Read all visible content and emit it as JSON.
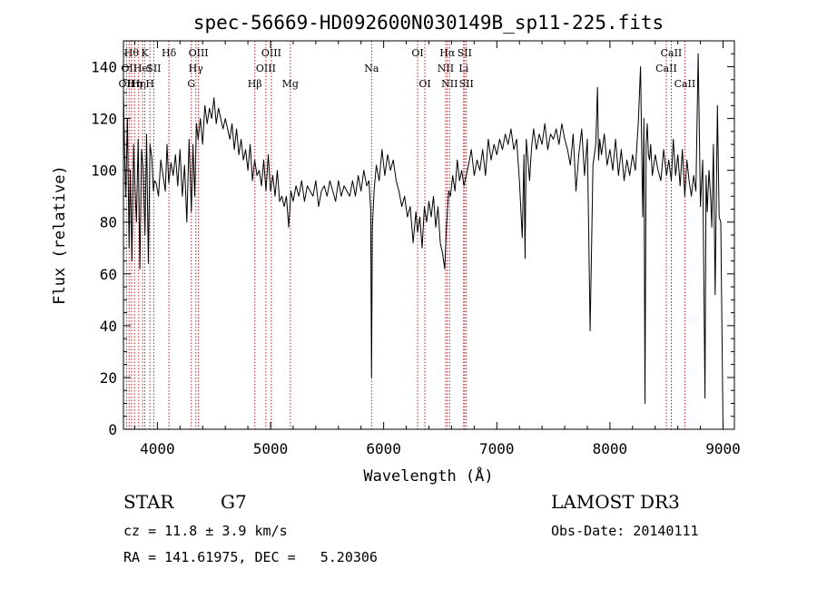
{
  "chart_data": {
    "type": "line",
    "title": "spec-56669-HD092600N030149B_sp11-225.fits",
    "xlabel": "Wavelength (Å)",
    "ylabel": "Flux (relative)",
    "xlim": [
      3700,
      9100
    ],
    "ylim": [
      0,
      150
    ],
    "x_ticks": [
      4000,
      5000,
      6000,
      7000,
      8000,
      9000
    ],
    "y_ticks": [
      0,
      20,
      40,
      60,
      80,
      100,
      120,
      140
    ],
    "grid": false,
    "legend": "none",
    "line_color": "#000000",
    "marker_color": "#b22222",
    "series": [
      {
        "x": [
          3700,
          3710,
          3720,
          3735,
          3750,
          3760,
          3775,
          3790,
          3800,
          3815,
          3830,
          3845,
          3860,
          3875,
          3890,
          3905,
          3920,
          3935,
          3950,
          3965,
          3975,
          3990,
          4010,
          4030,
          4050,
          4070,
          4085,
          4100,
          4120,
          4140,
          4160,
          4180,
          4200,
          4220,
          4240,
          4260,
          4280,
          4300,
          4315,
          4330,
          4345,
          4360,
          4380,
          4400,
          4420,
          4440,
          4460,
          4480,
          4500,
          4520,
          4540,
          4560,
          4580,
          4600,
          4620,
          4640,
          4660,
          4680,
          4700,
          4720,
          4740,
          4760,
          4780,
          4800,
          4820,
          4840,
          4860,
          4880,
          4900,
          4920,
          4940,
          4960,
          4980,
          5000,
          5020,
          5040,
          5060,
          5080,
          5100,
          5120,
          5140,
          5160,
          5180,
          5200,
          5225,
          5250,
          5275,
          5300,
          5325,
          5350,
          5375,
          5400,
          5425,
          5450,
          5475,
          5500,
          5525,
          5550,
          5575,
          5600,
          5625,
          5650,
          5675,
          5700,
          5725,
          5750,
          5775,
          5800,
          5825,
          5850,
          5870,
          5885,
          5893,
          5900,
          5915,
          5935,
          5960,
          5985,
          6010,
          6035,
          6060,
          6085,
          6110,
          6135,
          6160,
          6185,
          6210,
          6235,
          6260,
          6285,
          6300,
          6320,
          6340,
          6360,
          6380,
          6400,
          6420,
          6440,
          6460,
          6480,
          6500,
          6520,
          6540,
          6555,
          6563,
          6575,
          6590,
          6610,
          6630,
          6650,
          6670,
          6690,
          6710,
          6730,
          6750,
          6775,
          6800,
          6825,
          6850,
          6875,
          6900,
          6925,
          6950,
          6975,
          7000,
          7025,
          7050,
          7075,
          7100,
          7125,
          7150,
          7175,
          7200,
          7225,
          7240,
          7250,
          7260,
          7275,
          7290,
          7300,
          7310,
          7325,
          7350,
          7375,
          7400,
          7425,
          7450,
          7475,
          7500,
          7525,
          7550,
          7575,
          7600,
          7625,
          7650,
          7675,
          7700,
          7725,
          7750,
          7775,
          7800,
          7825,
          7850,
          7875,
          7890,
          7900,
          7910,
          7925,
          7950,
          7975,
          8000,
          8025,
          8050,
          8075,
          8100,
          8125,
          8150,
          8175,
          8200,
          8225,
          8250,
          8270,
          8290,
          8300,
          8310,
          8320,
          8330,
          8340,
          8350,
          8360,
          8375,
          8400,
          8425,
          8450,
          8475,
          8500,
          8520,
          8542,
          8560,
          8580,
          8600,
          8620,
          8640,
          8662,
          8680,
          8700,
          8720,
          8740,
          8760,
          8780,
          8800,
          8820,
          8840,
          8850,
          8860,
          8875,
          8890,
          8900,
          8915,
          8930,
          8950,
          8965,
          8980,
          9000
        ],
        "y": [
          130,
          108,
          90,
          120,
          70,
          100,
          65,
          110,
          95,
          80,
          112,
          62,
          108,
          100,
          75,
          114,
          64,
          110,
          105,
          92,
          96,
          95,
          90,
          104,
          98,
          92,
          110,
          95,
          103,
          98,
          106,
          94,
          108,
          90,
          102,
          80,
          112,
          84,
          110,
          90,
          118,
          112,
          120,
          110,
          125,
          118,
          124,
          120,
          128,
          118,
          124,
          120,
          116,
          120,
          116,
          112,
          118,
          108,
          116,
          106,
          112,
          104,
          108,
          100,
          110,
          96,
          104,
          98,
          100,
          94,
          104,
          92,
          106,
          92,
          98,
          90,
          100,
          88,
          90,
          86,
          90,
          78,
          92,
          88,
          94,
          90,
          96,
          88,
          94,
          92,
          90,
          96,
          86,
          92,
          94,
          90,
          96,
          92,
          88,
          96,
          90,
          94,
          92,
          90,
          96,
          90,
          98,
          92,
          100,
          94,
          96,
          85,
          20,
          78,
          92,
          102,
          96,
          108,
          98,
          106,
          100,
          104,
          96,
          92,
          86,
          90,
          82,
          86,
          72,
          84,
          76,
          82,
          70,
          86,
          80,
          88,
          82,
          90,
          78,
          86,
          72,
          68,
          62,
          78,
          84,
          92,
          90,
          98,
          92,
          104,
          96,
          100,
          94,
          98,
          102,
          108,
          98,
          104,
          100,
          108,
          98,
          112,
          104,
          110,
          106,
          112,
          108,
          114,
          110,
          116,
          108,
          112,
          96,
          74,
          106,
          66,
          112,
          104,
          96,
          104,
          110,
          116,
          108,
          114,
          110,
          118,
          108,
          114,
          112,
          116,
          110,
          118,
          112,
          108,
          102,
          114,
          92,
          106,
          116,
          98,
          112,
          38,
          102,
          110,
          132,
          104,
          112,
          106,
          114,
          102,
          108,
          100,
          112,
          98,
          108,
          96,
          104,
          98,
          106,
          100,
          118,
          140,
          82,
          120,
          10,
          110,
          118,
          106,
          104,
          110,
          98,
          106,
          100,
          96,
          108,
          98,
          104,
          96,
          112,
          98,
          106,
          94,
          108,
          90,
          104,
          96,
          90,
          98,
          92,
          145,
          86,
          104,
          12,
          98,
          84,
          100,
          90,
          78,
          110,
          52,
          125,
          82,
          80,
          0
        ]
      }
    ],
    "line_markers": [
      {
        "wl": 3727,
        "label": "OII",
        "row": 2
      },
      {
        "wl": 3750,
        "label": "OII",
        "row": 1
      },
      {
        "wl": 3771,
        "label": "Hθ",
        "row": 0
      },
      {
        "wl": 3798,
        "label": "Hη",
        "row": 2
      },
      {
        "wl": 3835,
        "label": "Hη",
        "row": 2
      },
      {
        "wl": 3869,
        "label": "HeI",
        "row": 1
      },
      {
        "wl": 3889,
        "label": "K",
        "row": 0
      },
      {
        "wl": 3934,
        "label": "H",
        "row": 2
      },
      {
        "wl": 3968,
        "label": "SII",
        "row": 1
      },
      {
        "wl": 4102,
        "label": "Hδ",
        "row": 0
      },
      {
        "wl": 4300,
        "label": "G",
        "row": 2
      },
      {
        "wl": 4340,
        "label": "Hγ",
        "row": 1
      },
      {
        "wl": 4363,
        "label": "OIII",
        "row": 0
      },
      {
        "wl": 4861,
        "label": "Hβ",
        "row": 2
      },
      {
        "wl": 4959,
        "label": "OIII",
        "row": 1
      },
      {
        "wl": 5007,
        "label": "OIII",
        "row": 0
      },
      {
        "wl": 5175,
        "label": "Mg",
        "row": 2
      },
      {
        "wl": 5893,
        "label": "Na",
        "row": 1
      },
      {
        "wl": 6300,
        "label": "OI",
        "row": 0
      },
      {
        "wl": 6364,
        "label": "OI",
        "row": 2
      },
      {
        "wl": 6548,
        "label": "NII",
        "row": 1
      },
      {
        "wl": 6563,
        "label": "Hα",
        "row": 0
      },
      {
        "wl": 6583,
        "label": "NII",
        "row": 2
      },
      {
        "wl": 6707,
        "label": "Li",
        "row": 1
      },
      {
        "wl": 6716,
        "label": "SII",
        "row": 0
      },
      {
        "wl": 6731,
        "label": "SII",
        "row": 2
      },
      {
        "wl": 8498,
        "label": "CaII",
        "row": 1
      },
      {
        "wl": 8542,
        "label": "CaII",
        "row": 0
      },
      {
        "wl": 8662,
        "label": "CaII",
        "row": 2
      }
    ]
  },
  "info": {
    "class": "STAR",
    "subclass": "G7",
    "survey": "LAMOST DR3",
    "redshift_line": "cz = 11.8 ± 3.9 km/s",
    "obs_date": "Obs-Date: 20140111",
    "coords": "RA = 141.61975, DEC =   5.20306"
  }
}
